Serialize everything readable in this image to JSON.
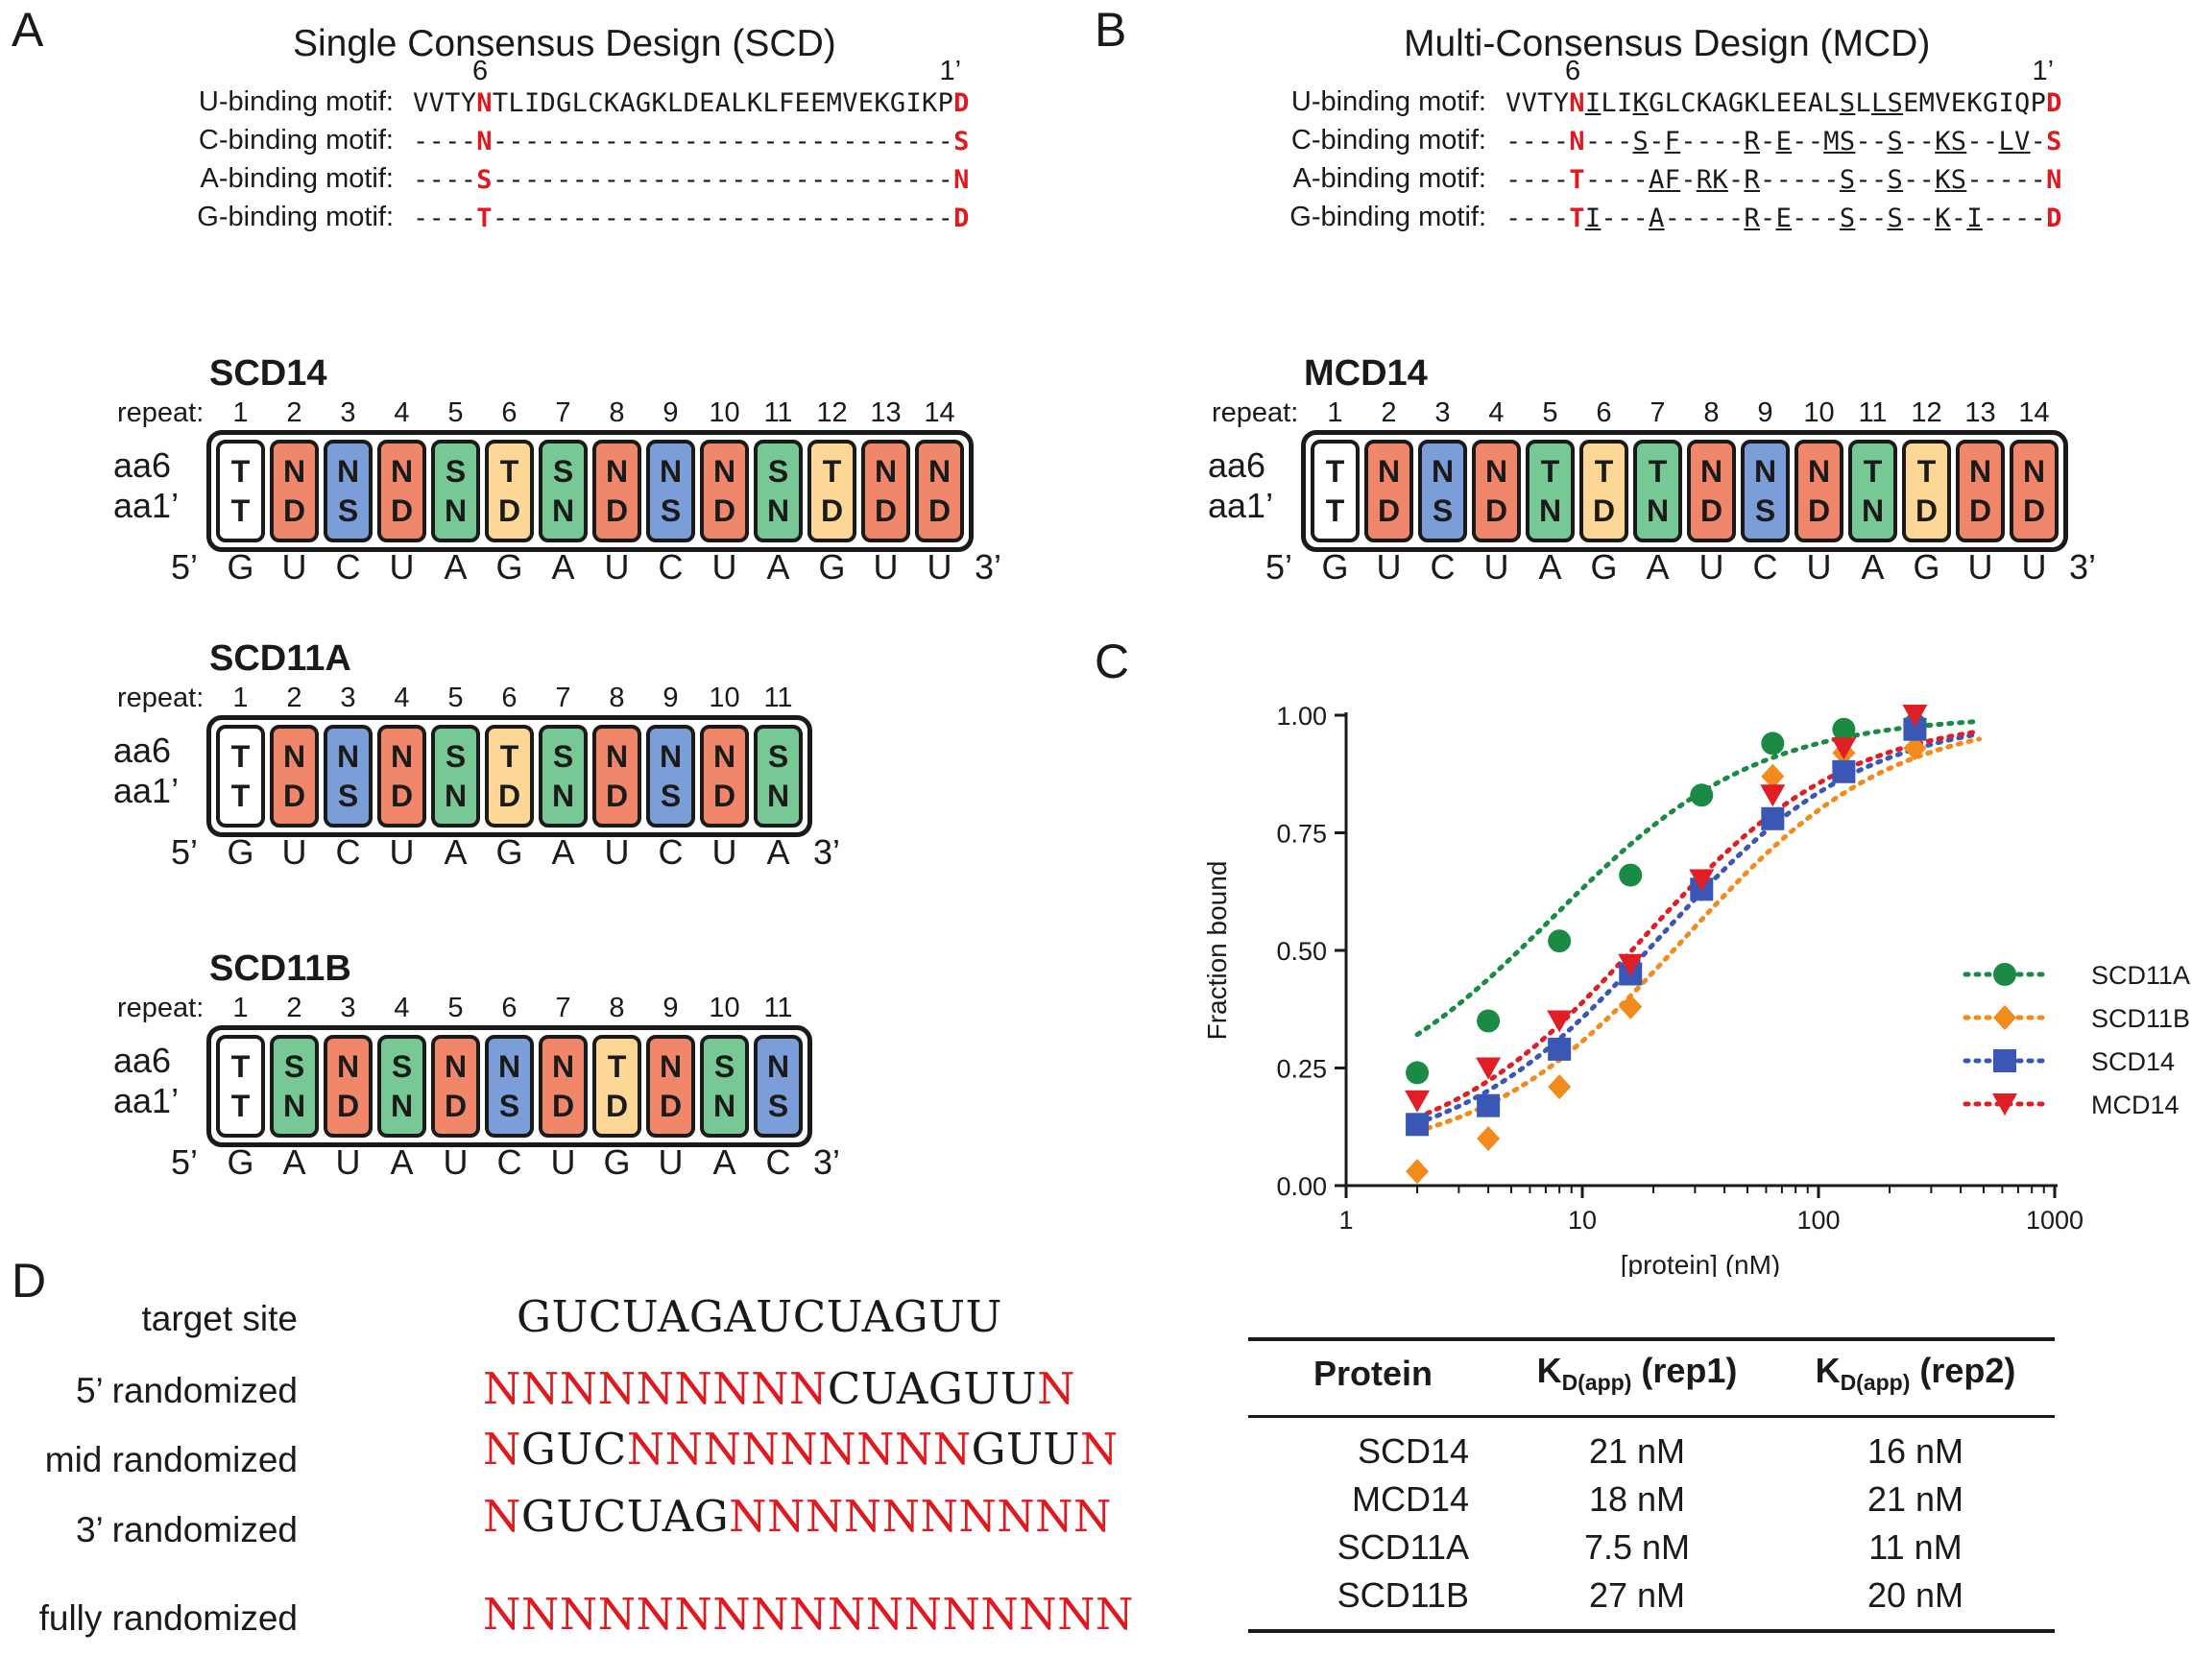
{
  "panels": {
    "A": "A",
    "B": "B",
    "C": "C",
    "D": "D"
  },
  "colors": {
    "U": "#f0876a",
    "C": "#7b9ed9",
    "A": "#78c896",
    "G": "#fdd795",
    "first": "#ffffff",
    "red": "#e0191f"
  },
  "scd": {
    "title": "Single Consensus Design (SCD)",
    "pos6": "6",
    "pos1": "1’",
    "motifs": [
      {
        "label": "U-binding motif:",
        "seq": "VVTYNTLIDGLCKAGKLDEALKLFEEMVEKGIKPD"
      },
      {
        "label": "C-binding motif:",
        "seq": "----N-----------------------------S"
      },
      {
        "label": "A-binding motif:",
        "seq": "----S-----------------------------N"
      },
      {
        "label": "G-binding motif:",
        "seq": "----T-----------------------------D"
      }
    ]
  },
  "mcd": {
    "title": "Multi-Consensus Design (MCD)",
    "pos6": "6",
    "pos1": "1’",
    "motifs": [
      {
        "label": "U-binding motif:",
        "seq": "VVTYNILIKGLCKAGKLEEALSLLSEMVEKGIQPD"
      },
      {
        "label": "C-binding motif:",
        "seq": "----N---S-F----R-E--MS--S--KS--LV-S"
      },
      {
        "label": "A-binding motif:",
        "seq": "----T----AF-RK-R-----S--S--KS-----N"
      },
      {
        "label": "G-binding motif:",
        "seq": "----TI---A-----R-E---S--S--K-I----D"
      }
    ]
  },
  "labels": {
    "repeat": "repeat:",
    "aa6": "aa6",
    "aa1": "aa1’",
    "five": "5’",
    "three": "3’"
  },
  "constructs": [
    {
      "name": "SCD14",
      "aa6": [
        "T",
        "N",
        "N",
        "N",
        "S",
        "T",
        "S",
        "N",
        "N",
        "N",
        "S",
        "T",
        "N",
        "N"
      ],
      "aa1": [
        "T",
        "D",
        "S",
        "D",
        "N",
        "D",
        "N",
        "D",
        "S",
        "D",
        "N",
        "D",
        "D",
        "D"
      ],
      "rna": [
        "G",
        "U",
        "C",
        "U",
        "A",
        "G",
        "A",
        "U",
        "C",
        "U",
        "A",
        "G",
        "U",
        "U"
      ]
    },
    {
      "name": "MCD14",
      "aa6": [
        "T",
        "N",
        "N",
        "N",
        "T",
        "T",
        "T",
        "N",
        "N",
        "N",
        "T",
        "T",
        "N",
        "N"
      ],
      "aa1": [
        "T",
        "D",
        "S",
        "D",
        "N",
        "D",
        "N",
        "D",
        "S",
        "D",
        "N",
        "D",
        "D",
        "D"
      ],
      "rna": [
        "G",
        "U",
        "C",
        "U",
        "A",
        "G",
        "A",
        "U",
        "C",
        "U",
        "A",
        "G",
        "U",
        "U"
      ]
    },
    {
      "name": "SCD11A",
      "aa6": [
        "T",
        "N",
        "N",
        "N",
        "S",
        "T",
        "S",
        "N",
        "N",
        "N",
        "S"
      ],
      "aa1": [
        "T",
        "D",
        "S",
        "D",
        "N",
        "D",
        "N",
        "D",
        "S",
        "D",
        "N"
      ],
      "rna": [
        "G",
        "U",
        "C",
        "U",
        "A",
        "G",
        "A",
        "U",
        "C",
        "U",
        "A"
      ]
    },
    {
      "name": "SCD11B",
      "aa6": [
        "T",
        "S",
        "N",
        "S",
        "N",
        "N",
        "N",
        "T",
        "N",
        "S",
        "N"
      ],
      "aa1": [
        "T",
        "N",
        "D",
        "N",
        "D",
        "S",
        "D",
        "D",
        "D",
        "N",
        "S"
      ],
      "rna": [
        "G",
        "A",
        "U",
        "A",
        "U",
        "C",
        "U",
        "G",
        "U",
        "A",
        "C"
      ]
    }
  ],
  "chart_data": {
    "type": "scatter",
    "xlabel": "[protein] (nM)",
    "ylabel": "Fraction bound",
    "xscale": "log",
    "xlim": [
      1,
      1000
    ],
    "ylim": [
      0,
      1
    ],
    "xticks": [
      "1",
      "10",
      "100",
      "1000"
    ],
    "yticks": [
      "0.00",
      "0.25",
      "0.50",
      "0.75",
      "1.00"
    ],
    "legend_position": "right",
    "series": [
      {
        "name": "SCD11A",
        "color": "#1a8a45",
        "marker": "circle",
        "x": [
          2,
          4,
          8,
          16,
          32,
          64,
          128,
          256
        ],
        "y": [
          0.24,
          0.35,
          0.52,
          0.66,
          0.83,
          0.94,
          0.97,
          0.98
        ],
        "kd": 7.5
      },
      {
        "name": "SCD11B",
        "color": "#f28a1c",
        "marker": "diamond",
        "x": [
          2,
          4,
          8,
          16,
          32,
          64,
          128,
          256
        ],
        "y": [
          0.03,
          0.1,
          0.21,
          0.38,
          0.63,
          0.87,
          0.92,
          0.93
        ],
        "kd": 27
      },
      {
        "name": "SCD14",
        "color": "#3b57b5",
        "marker": "square",
        "x": [
          2,
          4,
          8,
          16,
          32,
          64,
          128,
          256
        ],
        "y": [
          0.13,
          0.17,
          0.29,
          0.45,
          0.63,
          0.78,
          0.88,
          0.97
        ],
        "kd": 21
      },
      {
        "name": "MCD14",
        "color": "#e01e26",
        "marker": "triangle-down",
        "x": [
          2,
          4,
          8,
          16,
          32,
          64,
          128,
          256
        ],
        "y": [
          0.18,
          0.25,
          0.35,
          0.47,
          0.65,
          0.83,
          0.93,
          1.0
        ],
        "kd": 18
      }
    ]
  },
  "panel_d": {
    "rows": [
      {
        "label": "target site",
        "parts": [
          [
            "GUCUAGAUCUAGUU",
            "k"
          ]
        ]
      },
      {
        "label": "5’ randomized",
        "parts": [
          [
            "NNNNNNNNN",
            "r"
          ],
          [
            "CUAGUU",
            "k"
          ],
          [
            "N",
            "r"
          ]
        ]
      },
      {
        "label": "mid randomized",
        "parts": [
          [
            "N",
            "r"
          ],
          [
            "GUC",
            "k"
          ],
          [
            "NNNNNNNNN",
            "r"
          ],
          [
            "GUU",
            "k"
          ],
          [
            "N",
            "r"
          ]
        ]
      },
      {
        "label": "3’ randomized",
        "parts": [
          [
            "N",
            "r"
          ],
          [
            "GUCUAG",
            "k"
          ],
          [
            "NNNNNNNNNN",
            "r"
          ]
        ]
      },
      {
        "label": "fully randomized",
        "parts": [
          [
            "NNNNNNNNNNNNNNNNN",
            "r"
          ]
        ]
      }
    ]
  },
  "table": {
    "headers": [
      "Protein",
      "K",
      "D(app)",
      " (rep1)",
      "K",
      "D(app)",
      " (rep2)"
    ],
    "rows": [
      [
        "SCD14",
        "21 nM",
        "16 nM"
      ],
      [
        "MCD14",
        "18 nM",
        "21 nM"
      ],
      [
        "SCD11A",
        "7.5 nM",
        "11 nM"
      ],
      [
        "SCD11B",
        "27 nM",
        "20 nM"
      ]
    ]
  }
}
